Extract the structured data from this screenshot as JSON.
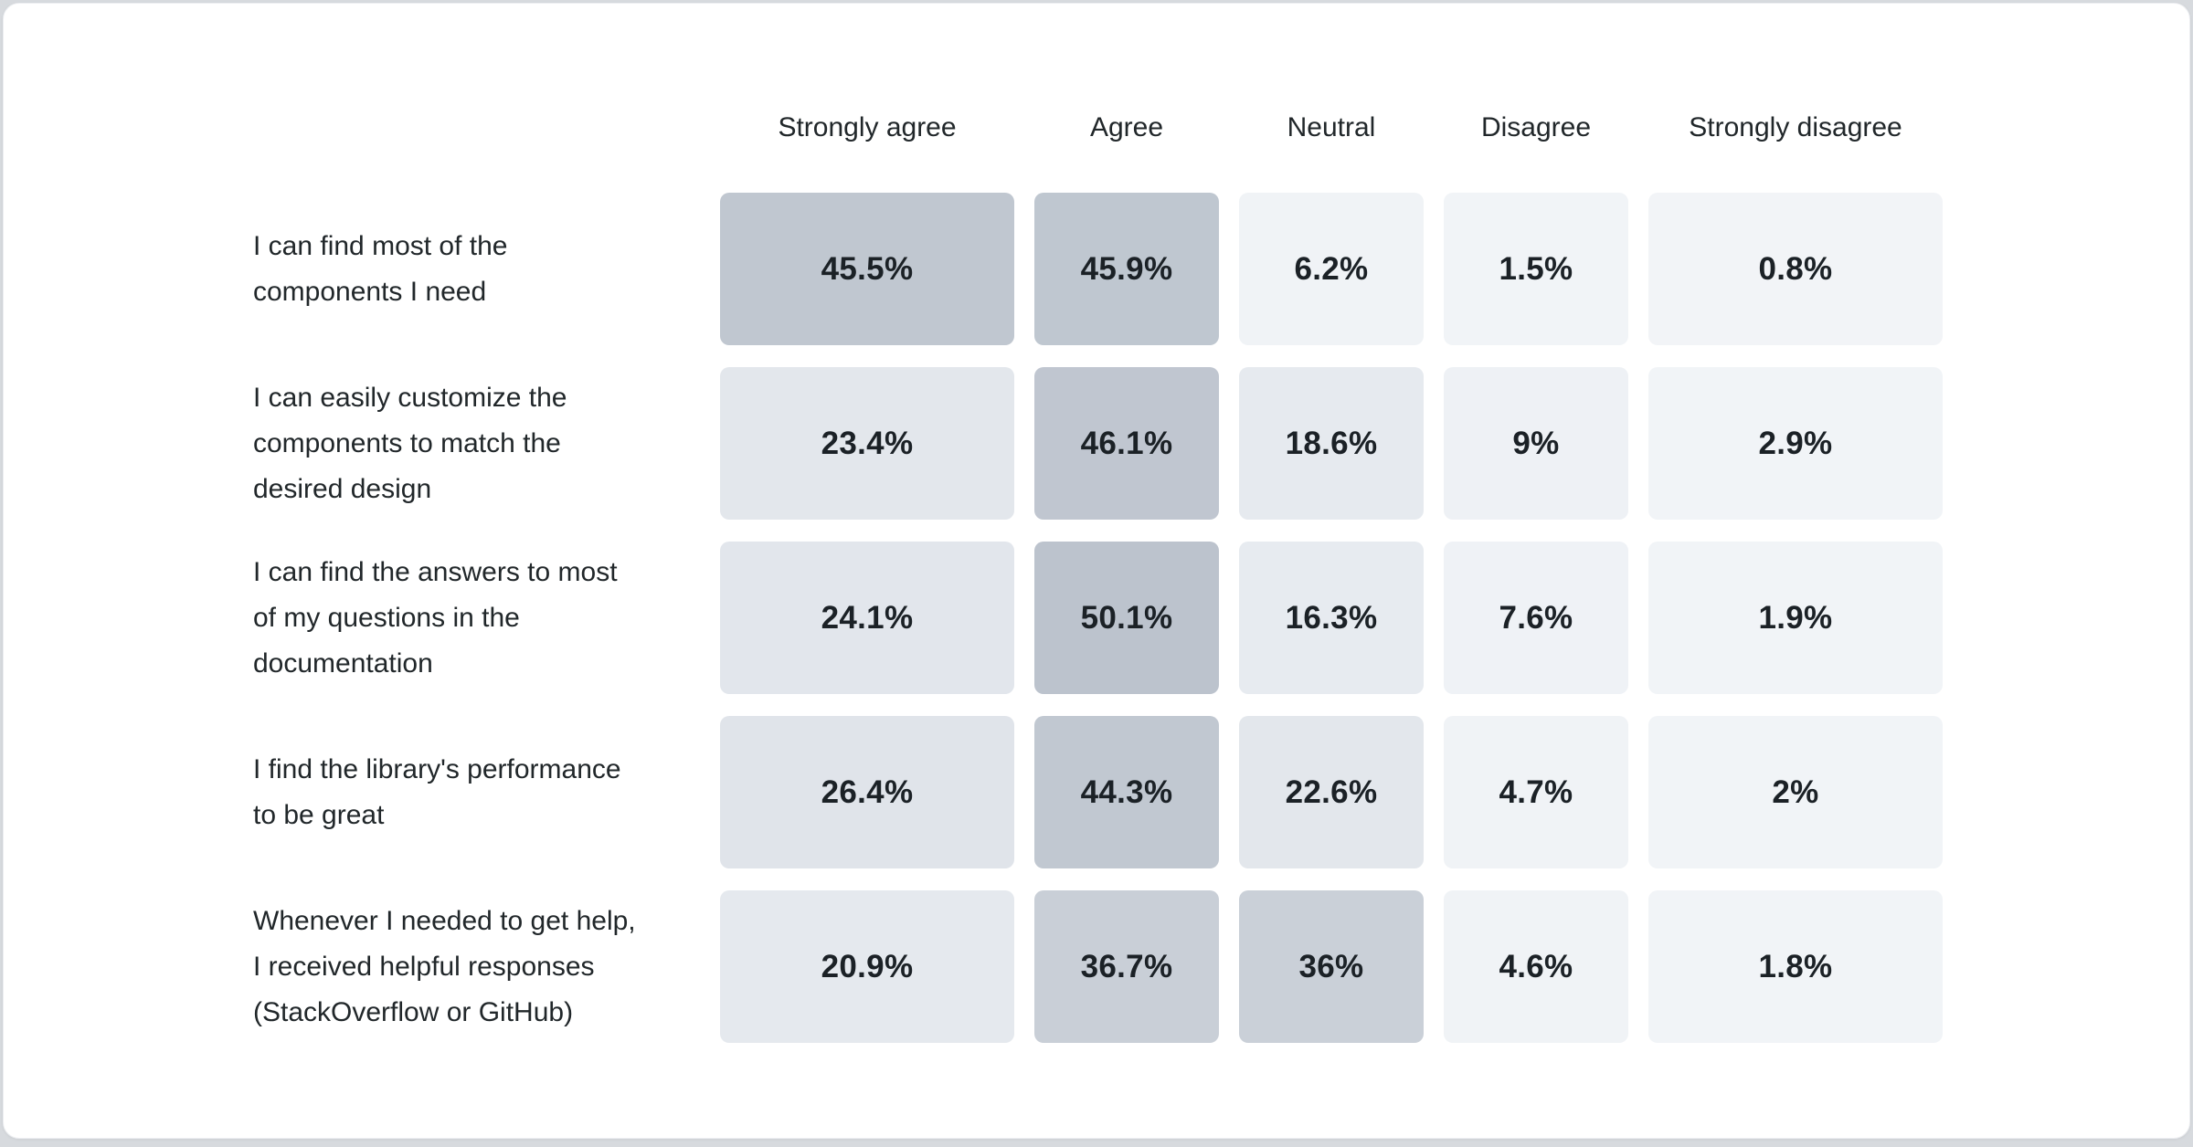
{
  "page": {
    "background_color": "#d7dade"
  },
  "card": {
    "background_color": "#ffffff",
    "border_color": "#eceef1"
  },
  "text_colors": {
    "header_color": "#21272a",
    "label_color": "#21272a",
    "value_color": "#1b2126"
  },
  "chart_data": {
    "type": "heatmap",
    "title": "",
    "xlabel": "",
    "ylabel": "",
    "grid": false,
    "legend_position": "none",
    "columns": [
      "Strongly agree",
      "Agree",
      "Neutral",
      "Disagree",
      "Strongly disagree"
    ],
    "rows": [
      {
        "label": "I can find most of the\ncomponents I need",
        "values": [
          45.5,
          45.9,
          6.2,
          1.5,
          0.8
        ],
        "display": [
          "45.5%",
          "45.9%",
          "6.2%",
          "1.5%",
          "0.8%"
        ],
        "cell_colors": [
          "#c0c7d0",
          "#bfc7d0",
          "#f0f3f6",
          "#f1f4f7",
          "#f2f4f7"
        ]
      },
      {
        "label": "I can easily customize the\ncomponents to match the\ndesired design",
        "values": [
          23.4,
          46.1,
          18.6,
          9,
          2.9
        ],
        "display": [
          "23.4%",
          "46.1%",
          "18.6%",
          "9%",
          "2.9%"
        ],
        "cell_colors": [
          "#e3e7ec",
          "#c0c6d0",
          "#e6eaef",
          "#eef1f5",
          "#f1f4f7"
        ]
      },
      {
        "label": "I can find the answers to most\nof my questions in the\ndocumentation",
        "values": [
          24.1,
          50.1,
          16.3,
          7.6,
          1.9
        ],
        "display": [
          "24.1%",
          "50.1%",
          "16.3%",
          "7.6%",
          "1.9%"
        ],
        "cell_colors": [
          "#e2e6ec",
          "#bcc3cd",
          "#e7ebf0",
          "#eff2f6",
          "#f1f4f7"
        ]
      },
      {
        "label": "I find the library's performance\nto be great",
        "values": [
          26.4,
          44.3,
          22.6,
          4.7,
          2
        ],
        "display": [
          "26.4%",
          "44.3%",
          "22.6%",
          "4.7%",
          "2%"
        ],
        "cell_colors": [
          "#e0e4ea",
          "#c1c8d1",
          "#e3e7ec",
          "#f0f3f6",
          "#f1f4f7"
        ]
      },
      {
        "label": "Whenever I needed to get help,\nI received helpful responses\n(StackOverflow or GitHub)",
        "values": [
          20.9,
          36.7,
          36,
          4.6,
          1.8
        ],
        "display": [
          "20.9%",
          "36.7%",
          "36%",
          "4.6%",
          "1.8%"
        ],
        "cell_colors": [
          "#e5e9ee",
          "#c9cfd7",
          "#cad0d8",
          "#f0f3f6",
          "#f1f4f7"
        ]
      }
    ],
    "color_scale": {
      "min_value": 0,
      "max_value": 50.1,
      "stops": [
        {
          "value": 0,
          "color": "#f2f5f8"
        },
        {
          "value": 10,
          "color": "#eef1f5"
        },
        {
          "value": 27,
          "color": "#dfe3e9"
        },
        {
          "value": 37,
          "color": "#c8ced6"
        },
        {
          "value": 50.1,
          "color": "#bcc3cd"
        }
      ]
    }
  }
}
